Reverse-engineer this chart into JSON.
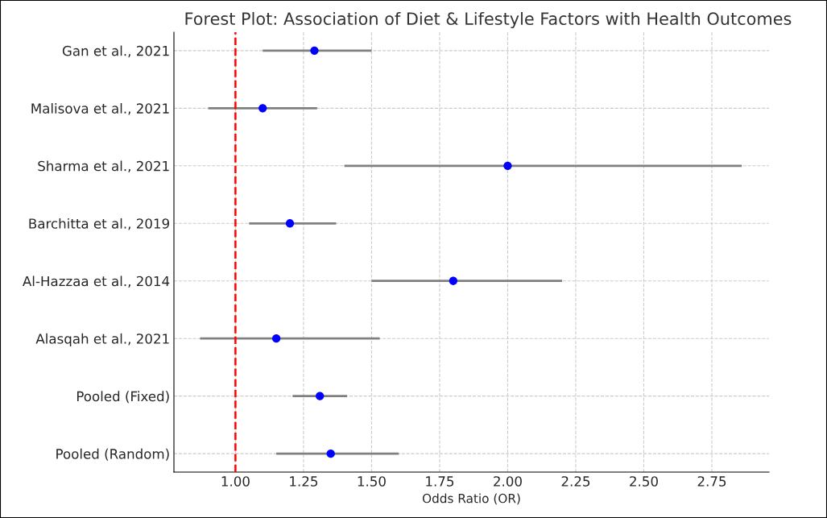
{
  "chart_data": {
    "type": "scatter",
    "orientation": "horizontal",
    "title": "Forest Plot: Association of Diet & Lifestyle Factors with Health Outcomes",
    "xlabel": "Odds Ratio (OR)",
    "categories": [
      "Gan et al., 2021",
      "Malisova et al., 2021",
      "Sharma et al., 2021",
      "Barchitta et al., 2019",
      "Al-Hazzaa et al., 2014",
      "Alasqah et al., 2021",
      "Pooled (Fixed)",
      "Pooled (Random)"
    ],
    "series": [
      {
        "color": "#0000ff",
        "values": [
          1.29,
          1.1,
          2.0,
          1.2,
          1.8,
          1.15,
          1.31,
          1.35
        ],
        "errors": [
          [
            1.1,
            1.5
          ],
          [
            0.9,
            1.3
          ],
          [
            1.4,
            2.86
          ],
          [
            1.05,
            1.37
          ],
          [
            1.5,
            2.2
          ],
          [
            0.87,
            1.53
          ],
          [
            1.21,
            1.41
          ],
          [
            1.15,
            1.6
          ]
        ]
      }
    ],
    "xlim": [
      0.774,
      2.96
    ],
    "xticks": [
      {
        "value": 1.0,
        "label": "1.00"
      },
      {
        "value": 1.25,
        "label": "1.25"
      },
      {
        "value": 1.5,
        "label": "1.50"
      },
      {
        "value": 1.75,
        "label": "1.75"
      },
      {
        "value": 2.0,
        "label": "2.00"
      },
      {
        "value": 2.25,
        "label": "2.25"
      },
      {
        "value": 2.5,
        "label": "2.50"
      },
      {
        "value": 2.75,
        "label": "2.75"
      }
    ],
    "ref_lines": [
      {
        "axis": "x",
        "value": 1,
        "color": "#ff0000",
        "line_style": "dashed"
      }
    ],
    "grid": true,
    "marker": "circle"
  }
}
